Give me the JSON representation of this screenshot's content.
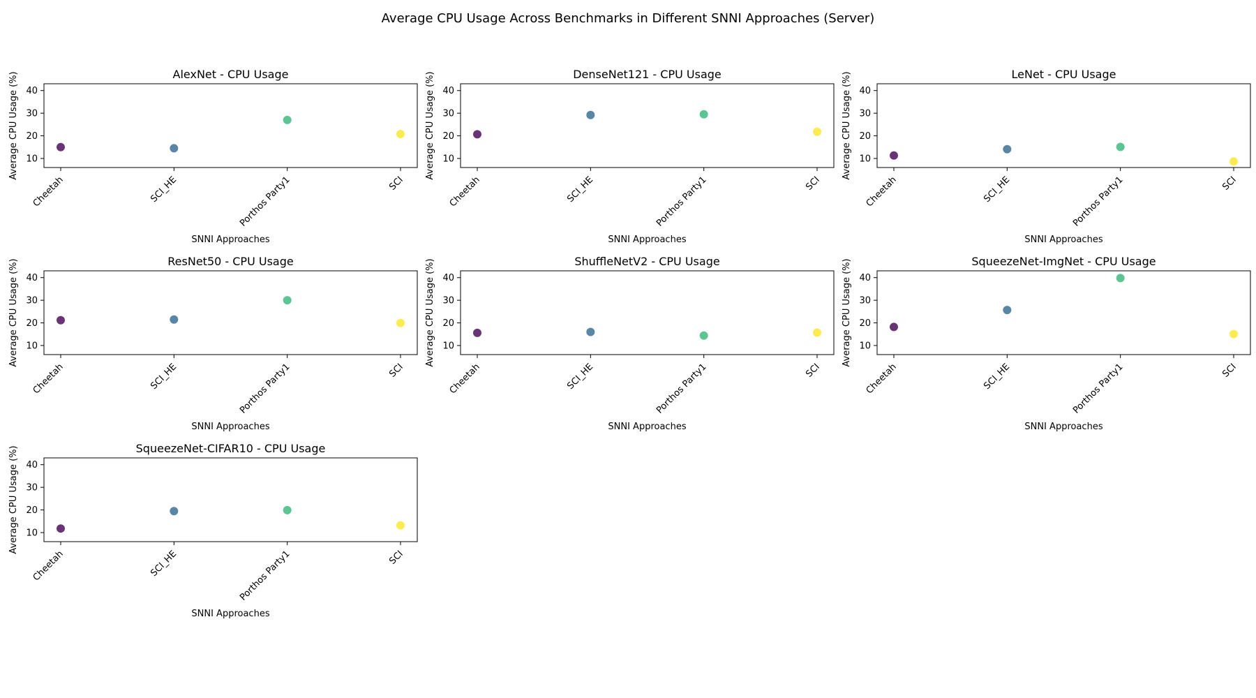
{
  "figure": {
    "title": "Average CPU Usage Across Benchmarks in Different SNNI Approaches (Server)"
  },
  "colors": {
    "Cheetah": "#440154",
    "SCI_HE": "#31688e",
    "Porthos Party1": "#35b779",
    "SCI": "#fde725"
  },
  "chart_data": [
    {
      "type": "scatter",
      "title": "AlexNet - CPU Usage",
      "xlabel": "SNNI Approaches",
      "ylabel": "Average CPU Usage (%)",
      "categories": [
        "Cheetah",
        "SCI_HE",
        "Porthos Party1",
        "SCI"
      ],
      "values": [
        15,
        14.5,
        27,
        20.8
      ],
      "ylim": [
        6,
        43
      ],
      "yticks": [
        10,
        20,
        30,
        40
      ],
      "grid": false
    },
    {
      "type": "scatter",
      "title": "DenseNet121 - CPU Usage",
      "xlabel": "SNNI Approaches",
      "ylabel": "Average CPU Usage (%)",
      "categories": [
        "Cheetah",
        "SCI_HE",
        "Porthos Party1",
        "SCI"
      ],
      "values": [
        20.7,
        29.2,
        29.5,
        21.8
      ],
      "ylim": [
        6,
        43
      ],
      "yticks": [
        10,
        20,
        30,
        40
      ],
      "grid": false
    },
    {
      "type": "scatter",
      "title": "LeNet - CPU Usage",
      "xlabel": "SNNI Approaches",
      "ylabel": "Average CPU Usage (%)",
      "categories": [
        "Cheetah",
        "SCI_HE",
        "Porthos Party1",
        "SCI"
      ],
      "values": [
        11.3,
        14.1,
        15.1,
        8.7
      ],
      "ylim": [
        6,
        43
      ],
      "yticks": [
        10,
        20,
        30,
        40
      ],
      "grid": false
    },
    {
      "type": "scatter",
      "title": "ResNet50 - CPU Usage",
      "xlabel": "SNNI Approaches",
      "ylabel": "Average CPU Usage (%)",
      "categories": [
        "Cheetah",
        "SCI_HE",
        "Porthos Party1",
        "SCI"
      ],
      "values": [
        21.2,
        21.5,
        30,
        20
      ],
      "ylim": [
        6,
        43
      ],
      "yticks": [
        10,
        20,
        30,
        40
      ],
      "grid": false
    },
    {
      "type": "scatter",
      "title": "ShuffleNetV2 - CPU Usage",
      "xlabel": "SNNI Approaches",
      "ylabel": "Average CPU Usage (%)",
      "categories": [
        "Cheetah",
        "SCI_HE",
        "Porthos Party1",
        "SCI"
      ],
      "values": [
        15.6,
        16,
        14.4,
        15.7
      ],
      "ylim": [
        6,
        43
      ],
      "yticks": [
        10,
        20,
        30,
        40
      ],
      "grid": false
    },
    {
      "type": "scatter",
      "title": "SqueezeNet-ImgNet - CPU Usage",
      "xlabel": "SNNI Approaches",
      "ylabel": "Average CPU Usage (%)",
      "categories": [
        "Cheetah",
        "SCI_HE",
        "Porthos Party1",
        "SCI"
      ],
      "values": [
        18.2,
        25.7,
        39.8,
        15.1
      ],
      "ylim": [
        6,
        43
      ],
      "yticks": [
        10,
        20,
        30,
        40
      ],
      "grid": false
    },
    {
      "type": "scatter",
      "title": "SqueezeNet-CIFAR10 - CPU Usage",
      "xlabel": "SNNI Approaches",
      "ylabel": "Average CPU Usage (%)",
      "categories": [
        "Cheetah",
        "SCI_HE",
        "Porthos Party1",
        "SCI"
      ],
      "values": [
        11.8,
        19.5,
        19.9,
        13.2
      ],
      "ylim": [
        6,
        43
      ],
      "yticks": [
        10,
        20,
        30,
        40
      ],
      "grid": false
    }
  ]
}
